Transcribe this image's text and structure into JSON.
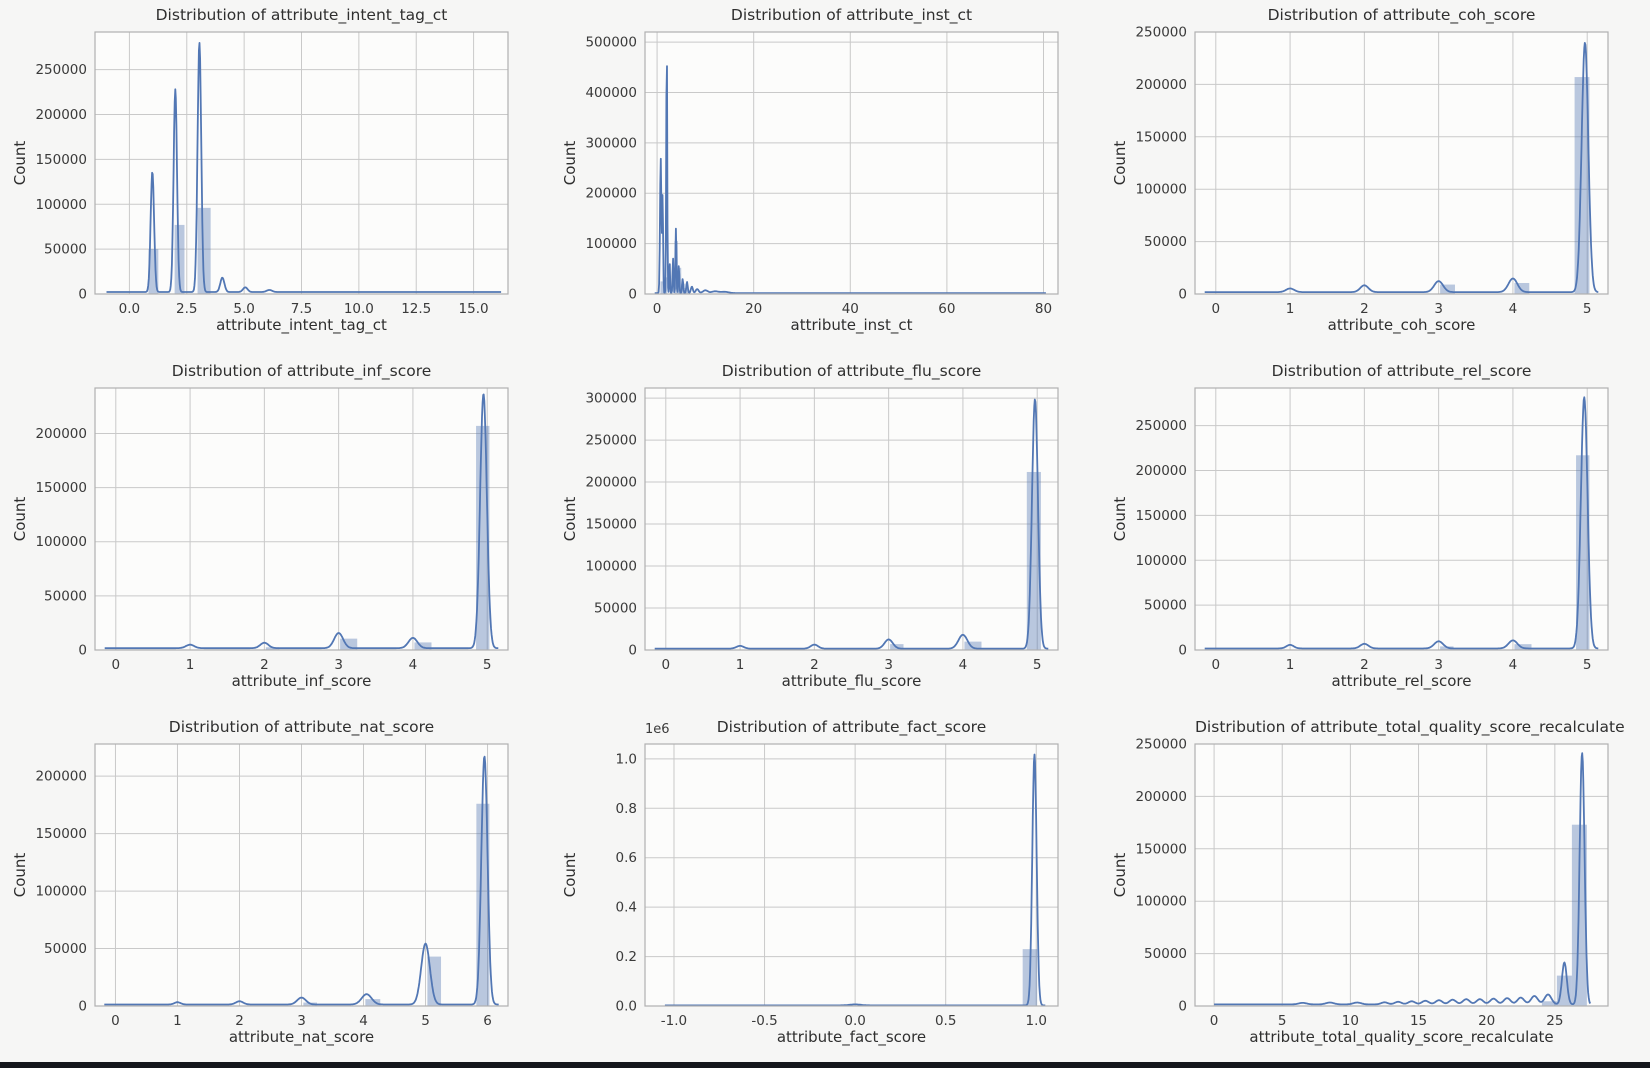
{
  "page": {
    "background": "#f6f6f5",
    "bottom_bar_color": "#14171c"
  },
  "colors": {
    "line": "#5277b4",
    "bar_fill": "#4c72b0",
    "bar_opacity": 0.38,
    "grid": "#c9c9c9",
    "spine": "#b0b0b0",
    "plot_bg": "#fcfcfb",
    "text": "#3a3a3a"
  },
  "chart_data": [
    {
      "type": "histogram+kde",
      "title": "Distribution of attribute_intent_tag_ct",
      "xlabel": "attribute_intent_tag_ct",
      "ylabel": "Count",
      "xlim": [
        -1.5,
        16.5
      ],
      "ylim": [
        0,
        292000
      ],
      "xticks": [
        0,
        2.5,
        5,
        7.5,
        10,
        12.5,
        15
      ],
      "xtick_labels": [
        "0.0",
        "2.5",
        "5.0",
        "7.5",
        "10.0",
        "12.5",
        "15.0"
      ],
      "yticks": [
        0,
        50000,
        100000,
        150000,
        200000,
        250000
      ],
      "ytick_labels": [
        "0",
        "50000",
        "100000",
        "150000",
        "200000",
        "250000"
      ],
      "bars": [
        [
          0.83,
          1.26,
          50000
        ],
        [
          1.97,
          2.4,
          77000
        ],
        [
          2.97,
          3.54,
          96000
        ]
      ],
      "kde": {
        "range": [
          -1.0,
          16.2
        ],
        "baseline": 2200,
        "peaks": [
          [
            1.0,
            134000,
            0.075
          ],
          [
            2.0,
            226000,
            0.075
          ],
          [
            3.05,
            278000,
            0.08
          ],
          [
            4.05,
            16000,
            0.09
          ],
          [
            5.05,
            5200,
            0.1
          ],
          [
            6.1,
            2300,
            0.12
          ]
        ]
      }
    },
    {
      "type": "histogram+kde",
      "title": "Distribution of attribute_inst_ct",
      "xlabel": "attribute_inst_ct",
      "ylabel": "Count",
      "xlim": [
        -2.5,
        83
      ],
      "ylim": [
        0,
        520000
      ],
      "xticks": [
        0,
        20,
        40,
        60,
        80
      ],
      "xtick_labels": [
        "0",
        "20",
        "40",
        "60",
        "80"
      ],
      "yticks": [
        0,
        100000,
        200000,
        300000,
        400000,
        500000
      ],
      "ytick_labels": [
        "0",
        "100000",
        "200000",
        "300000",
        "400000",
        "500000"
      ],
      "bars": [
        [
          0.7,
          1.4,
          25000
        ],
        [
          1.4,
          2.1,
          33000
        ],
        [
          3.6,
          4.3,
          105000
        ],
        [
          4.3,
          5.0,
          52000
        ],
        [
          5.0,
          5.7,
          20000
        ],
        [
          5.7,
          6.4,
          12000
        ]
      ],
      "kde": {
        "range": [
          -0.5,
          80.5
        ],
        "baseline": 1800,
        "peaks": [
          [
            0.75,
            270000,
            0.14
          ],
          [
            1.15,
            195000,
            0.1
          ],
          [
            2.0,
            500000,
            0.1
          ],
          [
            2.6,
            60000,
            0.08
          ],
          [
            3.3,
            70000,
            0.09
          ],
          [
            3.9,
            128000,
            0.1
          ],
          [
            4.5,
            55000,
            0.1
          ],
          [
            5.3,
            28000,
            0.12
          ],
          [
            6.2,
            22000,
            0.15
          ],
          [
            7.2,
            13000,
            0.2
          ],
          [
            8.3,
            8000,
            0.3
          ],
          [
            10,
            5500,
            0.5
          ],
          [
            12,
            3500,
            0.7
          ],
          [
            14,
            2500,
            0.8
          ]
        ]
      }
    },
    {
      "type": "histogram+kde",
      "title": "Distribution of attribute_coh_score",
      "xlabel": "attribute_coh_score",
      "ylabel": "Count",
      "xlim": [
        -0.28,
        5.28
      ],
      "ylim": [
        0,
        250000
      ],
      "xticks": [
        0,
        1,
        2,
        3,
        4,
        5
      ],
      "xtick_labels": [
        "0",
        "1",
        "2",
        "3",
        "4",
        "5"
      ],
      "yticks": [
        0,
        50000,
        100000,
        150000,
        200000,
        250000
      ],
      "ytick_labels": [
        "0",
        "50000",
        "100000",
        "150000",
        "200000",
        "250000"
      ],
      "bars": [
        [
          3.02,
          3.22,
          9000
        ],
        [
          4.02,
          4.22,
          10500
        ],
        [
          4.83,
          5.03,
          207000
        ]
      ],
      "kde": {
        "range": [
          -0.15,
          5.15
        ],
        "baseline": 1800,
        "peaks": [
          [
            1.0,
            3500,
            0.055
          ],
          [
            2.0,
            6500,
            0.055
          ],
          [
            3.0,
            10500,
            0.06
          ],
          [
            4.0,
            13000,
            0.06
          ],
          [
            4.97,
            238000,
            0.045
          ]
        ]
      }
    },
    {
      "type": "histogram+kde",
      "title": "Distribution of attribute_inf_score",
      "xlabel": "attribute_inf_score",
      "ylabel": "Count",
      "xlim": [
        -0.28,
        5.28
      ],
      "ylim": [
        0,
        242000
      ],
      "xticks": [
        0,
        1,
        2,
        3,
        4,
        5
      ],
      "xtick_labels": [
        "0",
        "1",
        "2",
        "3",
        "4",
        "5"
      ],
      "yticks": [
        0,
        50000,
        100000,
        150000,
        200000
      ],
      "ytick_labels": [
        "0",
        "50000",
        "100000",
        "150000",
        "200000"
      ],
      "bars": [
        [
          2.02,
          2.2,
          2500
        ],
        [
          3.02,
          3.25,
          10500
        ],
        [
          4.02,
          4.25,
          7000
        ],
        [
          4.85,
          5.03,
          207000
        ]
      ],
      "kde": {
        "range": [
          -0.15,
          5.15
        ],
        "baseline": 1700,
        "peaks": [
          [
            1.0,
            3200,
            0.055
          ],
          [
            2.0,
            5000,
            0.055
          ],
          [
            3.0,
            14000,
            0.06
          ],
          [
            4.0,
            9500,
            0.06
          ],
          [
            4.95,
            235000,
            0.045
          ]
        ]
      }
    },
    {
      "type": "histogram+kde",
      "title": "Distribution of attribute_flu_score",
      "xlabel": "attribute_flu_score",
      "ylabel": "Count",
      "xlim": [
        -0.28,
        5.28
      ],
      "ylim": [
        0,
        312000
      ],
      "xticks": [
        0,
        1,
        2,
        3,
        4,
        5
      ],
      "xtick_labels": [
        "0",
        "1",
        "2",
        "3",
        "4",
        "5"
      ],
      "yticks": [
        0,
        50000,
        100000,
        150000,
        200000,
        250000,
        300000
      ],
      "ytick_labels": [
        "0",
        "50000",
        "100000",
        "150000",
        "200000",
        "250000",
        "300000"
      ],
      "bars": [
        [
          3.02,
          3.2,
          7000
        ],
        [
          4.02,
          4.25,
          10000
        ],
        [
          4.86,
          5.05,
          212000
        ]
      ],
      "kde": {
        "range": [
          -0.15,
          5.15
        ],
        "baseline": 1600,
        "peaks": [
          [
            1.0,
            3300,
            0.05
          ],
          [
            2.0,
            4800,
            0.05
          ],
          [
            3.0,
            11000,
            0.055
          ],
          [
            4.0,
            16500,
            0.06
          ],
          [
            4.97,
            297000,
            0.04
          ]
        ]
      }
    },
    {
      "type": "histogram+kde",
      "title": "Distribution of attribute_rel_score",
      "xlabel": "attribute_rel_score",
      "ylabel": "Count",
      "xlim": [
        -0.28,
        5.28
      ],
      "ylim": [
        0,
        292000
      ],
      "xticks": [
        0,
        1,
        2,
        3,
        4,
        5
      ],
      "xtick_labels": [
        "0",
        "1",
        "2",
        "3",
        "4",
        "5"
      ],
      "yticks": [
        0,
        50000,
        100000,
        150000,
        200000,
        250000
      ],
      "ytick_labels": [
        "0",
        "50000",
        "100000",
        "150000",
        "200000",
        "250000"
      ],
      "bars": [
        [
          3.02,
          3.2,
          4000
        ],
        [
          4.02,
          4.25,
          6500
        ],
        [
          4.85,
          5.03,
          217000
        ]
      ],
      "kde": {
        "range": [
          -0.15,
          5.15
        ],
        "baseline": 1700,
        "peaks": [
          [
            1.0,
            4000,
            0.05
          ],
          [
            2.0,
            5200,
            0.055
          ],
          [
            3.0,
            8000,
            0.06
          ],
          [
            4.0,
            9000,
            0.06
          ],
          [
            4.96,
            280000,
            0.045
          ]
        ]
      }
    },
    {
      "type": "histogram+kde",
      "title": "Distribution of attribute_nat_score",
      "xlabel": "attribute_nat_score",
      "ylabel": "Count",
      "xlim": [
        -0.33,
        6.33
      ],
      "ylim": [
        0,
        228000
      ],
      "xticks": [
        0,
        1,
        2,
        3,
        4,
        5,
        6
      ],
      "xtick_labels": [
        "0",
        "1",
        "2",
        "3",
        "4",
        "5",
        "6"
      ],
      "yticks": [
        0,
        50000,
        100000,
        150000,
        200000
      ],
      "ytick_labels": [
        "0",
        "50000",
        "100000",
        "150000",
        "200000"
      ],
      "bars": [
        [
          3.03,
          3.25,
          3000
        ],
        [
          4.03,
          4.27,
          6000
        ],
        [
          5.03,
          5.25,
          43000
        ],
        [
          5.82,
          6.03,
          176000
        ]
      ],
      "kde": {
        "range": [
          -0.18,
          6.18
        ],
        "baseline": 1300,
        "peaks": [
          [
            1.0,
            2000,
            0.05
          ],
          [
            2.0,
            2800,
            0.06
          ],
          [
            3.0,
            6000,
            0.07
          ],
          [
            4.05,
            9000,
            0.08
          ],
          [
            5.0,
            53000,
            0.07
          ],
          [
            5.95,
            216000,
            0.05
          ]
        ]
      }
    },
    {
      "type": "histogram+kde",
      "title": "Distribution of attribute_fact_score",
      "xlabel": "attribute_fact_score",
      "ylabel": "Count",
      "offset_text": "1e6",
      "xlim": [
        -1.16,
        1.12
      ],
      "ylim": [
        0,
        1060000
      ],
      "xticks": [
        -1.0,
        -0.5,
        0.0,
        0.5,
        1.0
      ],
      "xtick_labels": [
        "-1.0",
        "-0.5",
        "0.0",
        "0.5",
        "1.0"
      ],
      "yticks": [
        0,
        200000,
        400000,
        600000,
        800000,
        1000000
      ],
      "ytick_labels": [
        "0.0",
        "0.2",
        "0.4",
        "0.6",
        "0.8",
        "1.0"
      ],
      "bars": [
        [
          0.925,
          1.005,
          230000
        ]
      ],
      "kde": {
        "range": [
          -1.05,
          1.05
        ],
        "baseline": 2500,
        "peaks": [
          [
            0.0,
            4000,
            0.03
          ],
          [
            0.99,
            1015000,
            0.012
          ]
        ]
      }
    },
    {
      "type": "histogram+kde",
      "title": "Distribution of attribute_total_quality_score_recalculate",
      "xlabel": "attribute_total_quality_score_recalculate",
      "ylabel": "Count",
      "xlim": [
        -1.4,
        28.9
      ],
      "ylim": [
        0,
        250000
      ],
      "xticks": [
        0,
        5,
        10,
        15,
        20,
        25
      ],
      "xtick_labels": [
        "0",
        "5",
        "10",
        "15",
        "20",
        "25"
      ],
      "yticks": [
        0,
        50000,
        100000,
        150000,
        200000,
        250000
      ],
      "ytick_labels": [
        "0",
        "50000",
        "100000",
        "150000",
        "200000",
        "250000"
      ],
      "bars": [
        [
          24.05,
          25.15,
          4500
        ],
        [
          25.15,
          26.25,
          29000
        ],
        [
          26.25,
          27.35,
          173000
        ]
      ],
      "kde": {
        "range": [
          0,
          27.6
        ],
        "baseline": 1500,
        "peaks": [
          [
            6.5,
            1500,
            0.3
          ],
          [
            8.5,
            1800,
            0.3
          ],
          [
            10.5,
            1800,
            0.3
          ],
          [
            12.5,
            2000,
            0.25
          ],
          [
            13.5,
            2500,
            0.25
          ],
          [
            14.5,
            3000,
            0.25
          ],
          [
            15.5,
            3500,
            0.25
          ],
          [
            16.5,
            4000,
            0.25
          ],
          [
            17.5,
            4500,
            0.25
          ],
          [
            18.5,
            5000,
            0.25
          ],
          [
            19.5,
            5000,
            0.25
          ],
          [
            20.5,
            5500,
            0.25
          ],
          [
            21.5,
            6000,
            0.25
          ],
          [
            22.5,
            6500,
            0.25
          ],
          [
            23.5,
            8000,
            0.25
          ],
          [
            24.5,
            9500,
            0.25
          ],
          [
            25.7,
            40000,
            0.18
          ],
          [
            27.0,
            240000,
            0.18
          ]
        ]
      }
    }
  ]
}
